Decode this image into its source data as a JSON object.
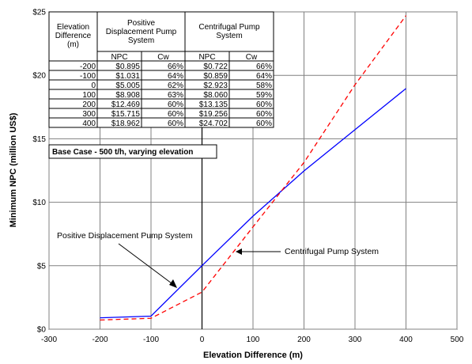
{
  "chart_data": {
    "type": "line",
    "x": [
      -200,
      -100,
      0,
      100,
      200,
      300,
      400
    ],
    "series": [
      {
        "name": "Positive Displacement Pump System",
        "color": "#0000ff",
        "dash": "solid",
        "values": [
          0.895,
          1.031,
          5.005,
          8.908,
          12.469,
          15.715,
          18.962
        ]
      },
      {
        "name": "Centrifugal Pump System",
        "color": "#ff0000",
        "dash": "dashed",
        "values": [
          0.722,
          0.859,
          2.923,
          8.06,
          13.135,
          19.256,
          24.702
        ]
      }
    ],
    "xlabel": "Elevation Difference (m)",
    "ylabel": "Minimum NPC (million US$)",
    "xlim": [
      -300,
      500
    ],
    "ylim": [
      0,
      25
    ],
    "x_ticks": [
      "-300",
      "-200",
      "-100",
      "0",
      "100",
      "200",
      "300",
      "400",
      "500"
    ],
    "y_ticks": [
      "$0",
      "$5",
      "$10",
      "$15",
      "$20",
      "$25"
    ],
    "grid": true,
    "annotations": {
      "pd_label": "Positive Displacement Pump System",
      "cf_label": "Centrifugal Pump System",
      "base_case": "Base Case - 500 t/h, varying elevation"
    },
    "table": {
      "header_col1": [
        "Elevation",
        "Difference",
        "(m)"
      ],
      "header_pd": [
        "Positive",
        "Displacement Pump",
        "System"
      ],
      "header_cf": [
        "Centrifugal Pump",
        "System"
      ],
      "sub_headers": [
        "NPC",
        "Cw",
        "NPC",
        "Cw"
      ],
      "rows": [
        [
          "-200",
          "$0.895",
          "66%",
          "$0.722",
          "66%"
        ],
        [
          "-100",
          "$1.031",
          "64%",
          "$0.859",
          "64%"
        ],
        [
          "0",
          "$5.005",
          "62%",
          "$2.923",
          "58%"
        ],
        [
          "100",
          "$8.908",
          "63%",
          "$8.060",
          "59%"
        ],
        [
          "200",
          "$12.469",
          "60%",
          "$13.135",
          "60%"
        ],
        [
          "300",
          "$15.715",
          "60%",
          "$19.256",
          "60%"
        ],
        [
          "400",
          "$18.962",
          "60%",
          "$24.702",
          "60%"
        ]
      ]
    }
  }
}
